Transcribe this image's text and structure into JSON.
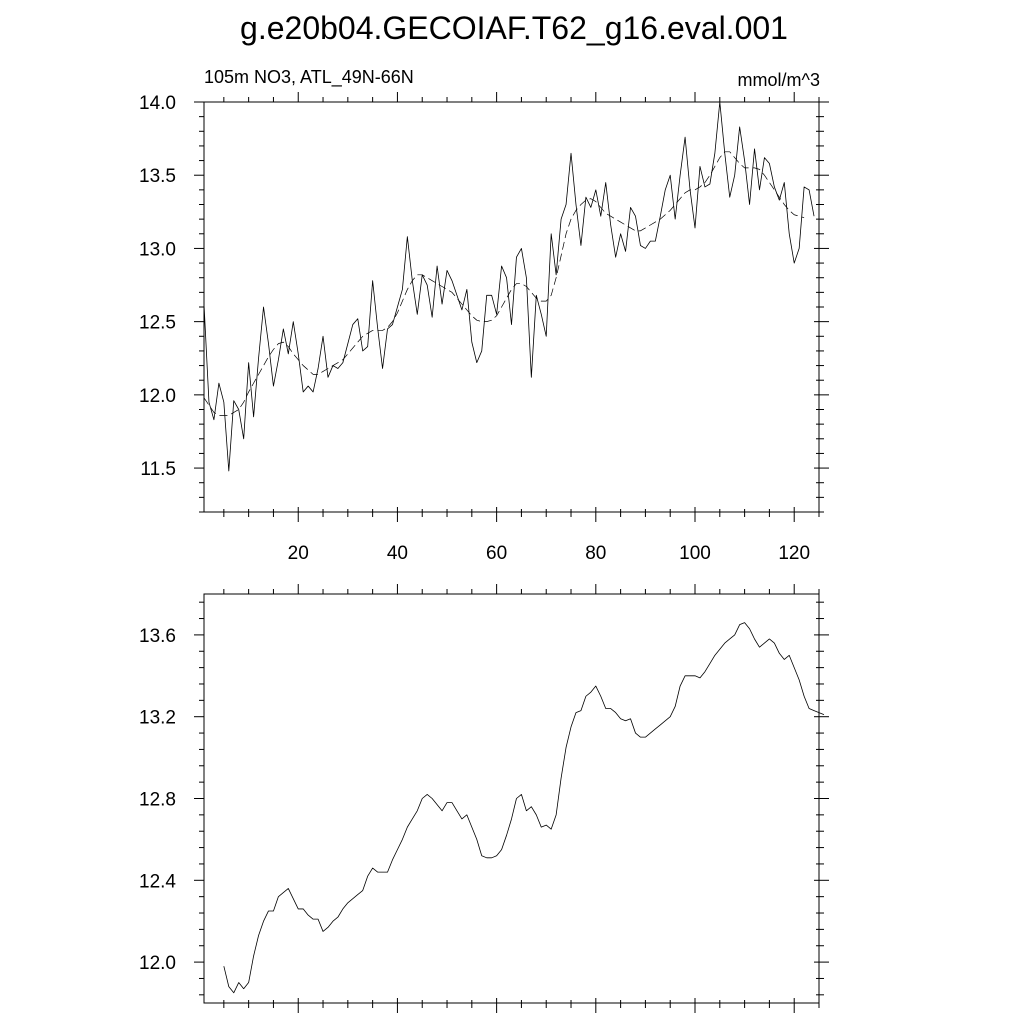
{
  "figure": {
    "title": "g.e20b04.GECOIAF.T62_g16.eval.001"
  },
  "chart_data": [
    {
      "type": "line",
      "left_label": "105m NO3, ATL_49N-66N",
      "right_label": "mmol/m^3",
      "xlim": [
        1,
        125
      ],
      "ylim": [
        11.2,
        14.0
      ],
      "x_ticks": [
        20,
        40,
        60,
        80,
        100,
        120
      ],
      "y_ticks": [
        11.5,
        12.0,
        12.5,
        13.0,
        13.5,
        14.0
      ],
      "x_tick_labels": [
        "20",
        "40",
        "60",
        "80",
        "100",
        "120"
      ],
      "y_tick_labels": [
        "11.5",
        "12.0",
        "12.5",
        "13.0",
        "13.5",
        "14.0"
      ],
      "grid": false,
      "series": [
        {
          "style": "solid",
          "x_start": 1,
          "values": [
            12.62,
            11.95,
            11.83,
            12.08,
            11.95,
            11.48,
            11.96,
            11.9,
            11.7,
            12.22,
            11.85,
            12.25,
            12.6,
            12.35,
            12.06,
            12.24,
            12.45,
            12.28,
            12.5,
            12.28,
            12.02,
            12.06,
            12.02,
            12.18,
            12.4,
            12.12,
            12.2,
            12.18,
            12.22,
            12.35,
            12.48,
            12.52,
            12.3,
            12.33,
            12.78,
            12.46,
            12.18,
            12.45,
            12.48,
            12.6,
            12.72,
            13.08,
            12.78,
            12.55,
            12.82,
            12.75,
            12.53,
            12.88,
            12.62,
            12.85,
            12.78,
            12.68,
            12.58,
            12.72,
            12.36,
            12.22,
            12.3,
            12.68,
            12.68,
            12.55,
            12.88,
            12.8,
            12.48,
            12.94,
            13.0,
            12.8,
            12.12,
            12.68,
            12.55,
            12.4,
            13.1,
            12.82,
            13.2,
            13.3,
            13.65,
            13.3,
            13.02,
            13.35,
            13.28,
            13.4,
            13.22,
            13.45,
            13.16,
            12.94,
            13.1,
            12.98,
            13.28,
            13.22,
            13.02,
            13.0,
            13.05,
            13.05,
            13.22,
            13.4,
            13.5,
            13.2,
            13.5,
            13.76,
            13.4,
            13.14,
            13.56,
            13.42,
            13.44,
            13.65,
            14.0,
            13.65,
            13.35,
            13.5,
            13.83,
            13.6,
            13.3,
            13.68,
            13.4,
            13.62,
            13.58,
            13.42,
            13.33,
            13.45,
            13.1,
            12.9,
            13.0,
            13.42,
            13.4,
            13.22
          ]
        },
        {
          "style": "dashed",
          "x_start": 1,
          "values": [
            11.98,
            11.93,
            11.88,
            11.86,
            11.86,
            11.86,
            11.88,
            11.9,
            11.95,
            12.02,
            12.08,
            12.14,
            12.2,
            12.26,
            12.31,
            12.35,
            12.36,
            12.33,
            12.28,
            12.24,
            12.2,
            12.17,
            12.14,
            12.14,
            12.16,
            12.18,
            12.2,
            12.22,
            12.24,
            12.28,
            12.32,
            12.36,
            12.4,
            12.42,
            12.44,
            12.44,
            12.44,
            12.46,
            12.5,
            12.56,
            12.64,
            12.72,
            12.78,
            12.82,
            12.82,
            12.8,
            12.78,
            12.76,
            12.74,
            12.72,
            12.7,
            12.66,
            12.62,
            12.58,
            12.54,
            12.51,
            12.5,
            12.5,
            12.51,
            12.54,
            12.6,
            12.66,
            12.72,
            12.76,
            12.76,
            12.74,
            12.7,
            12.66,
            12.64,
            12.64,
            12.68,
            12.8,
            12.95,
            13.1,
            13.2,
            13.26,
            13.3,
            13.33,
            13.34,
            13.32,
            13.28,
            13.24,
            13.22,
            13.2,
            13.18,
            13.16,
            13.14,
            13.12,
            13.12,
            13.14,
            13.16,
            13.18,
            13.2,
            13.23,
            13.26,
            13.3,
            13.34,
            13.38,
            13.4,
            13.4,
            13.42,
            13.45,
            13.5,
            13.56,
            13.62,
            13.66,
            13.66,
            13.62,
            13.58,
            13.55,
            13.55,
            13.55,
            13.54,
            13.5,
            13.45,
            13.4,
            13.35,
            13.3,
            13.26,
            13.23,
            13.22,
            13.21
          ]
        }
      ]
    },
    {
      "type": "line",
      "xlim": [
        1,
        125
      ],
      "ylim": [
        11.8,
        13.8
      ],
      "y_ticks": [
        12.0,
        12.4,
        12.8,
        13.2,
        13.6
      ],
      "y_tick_labels": [
        "12.0",
        "12.4",
        "12.8",
        "13.2",
        "13.6"
      ],
      "x_ticks": [
        20,
        40,
        60,
        80,
        100,
        120
      ],
      "grid": false,
      "series": [
        {
          "style": "solid",
          "x_start": 5,
          "values": [
            11.98,
            11.88,
            11.85,
            11.9,
            11.87,
            11.9,
            12.03,
            12.13,
            12.2,
            12.25,
            12.25,
            12.32,
            12.34,
            12.36,
            12.31,
            12.26,
            12.26,
            12.23,
            12.21,
            12.21,
            12.15,
            12.17,
            12.2,
            12.22,
            12.26,
            12.29,
            12.31,
            12.33,
            12.35,
            12.42,
            12.46,
            12.44,
            12.44,
            12.44,
            12.5,
            12.55,
            12.6,
            12.66,
            12.7,
            12.74,
            12.8,
            12.82,
            12.8,
            12.77,
            12.74,
            12.78,
            12.78,
            12.74,
            12.7,
            12.72,
            12.66,
            12.6,
            12.52,
            12.51,
            12.51,
            12.52,
            12.55,
            12.62,
            12.7,
            12.8,
            12.82,
            12.74,
            12.76,
            12.72,
            12.66,
            12.67,
            12.65,
            12.72,
            12.9,
            13.05,
            13.15,
            13.22,
            13.23,
            13.3,
            13.32,
            13.35,
            13.3,
            13.24,
            13.24,
            13.22,
            13.19,
            13.18,
            13.19,
            13.12,
            13.1,
            13.1,
            13.12,
            13.14,
            13.16,
            13.18,
            13.2,
            13.25,
            13.35,
            13.4,
            13.4,
            13.4,
            13.39,
            13.42,
            13.46,
            13.5,
            13.53,
            13.56,
            13.58,
            13.6,
            13.65,
            13.66,
            13.63,
            13.58,
            13.54,
            13.56,
            13.58,
            13.56,
            13.51,
            13.48,
            13.5,
            13.44,
            13.38,
            13.3,
            13.24,
            13.23,
            13.22,
            13.21
          ]
        }
      ]
    }
  ]
}
